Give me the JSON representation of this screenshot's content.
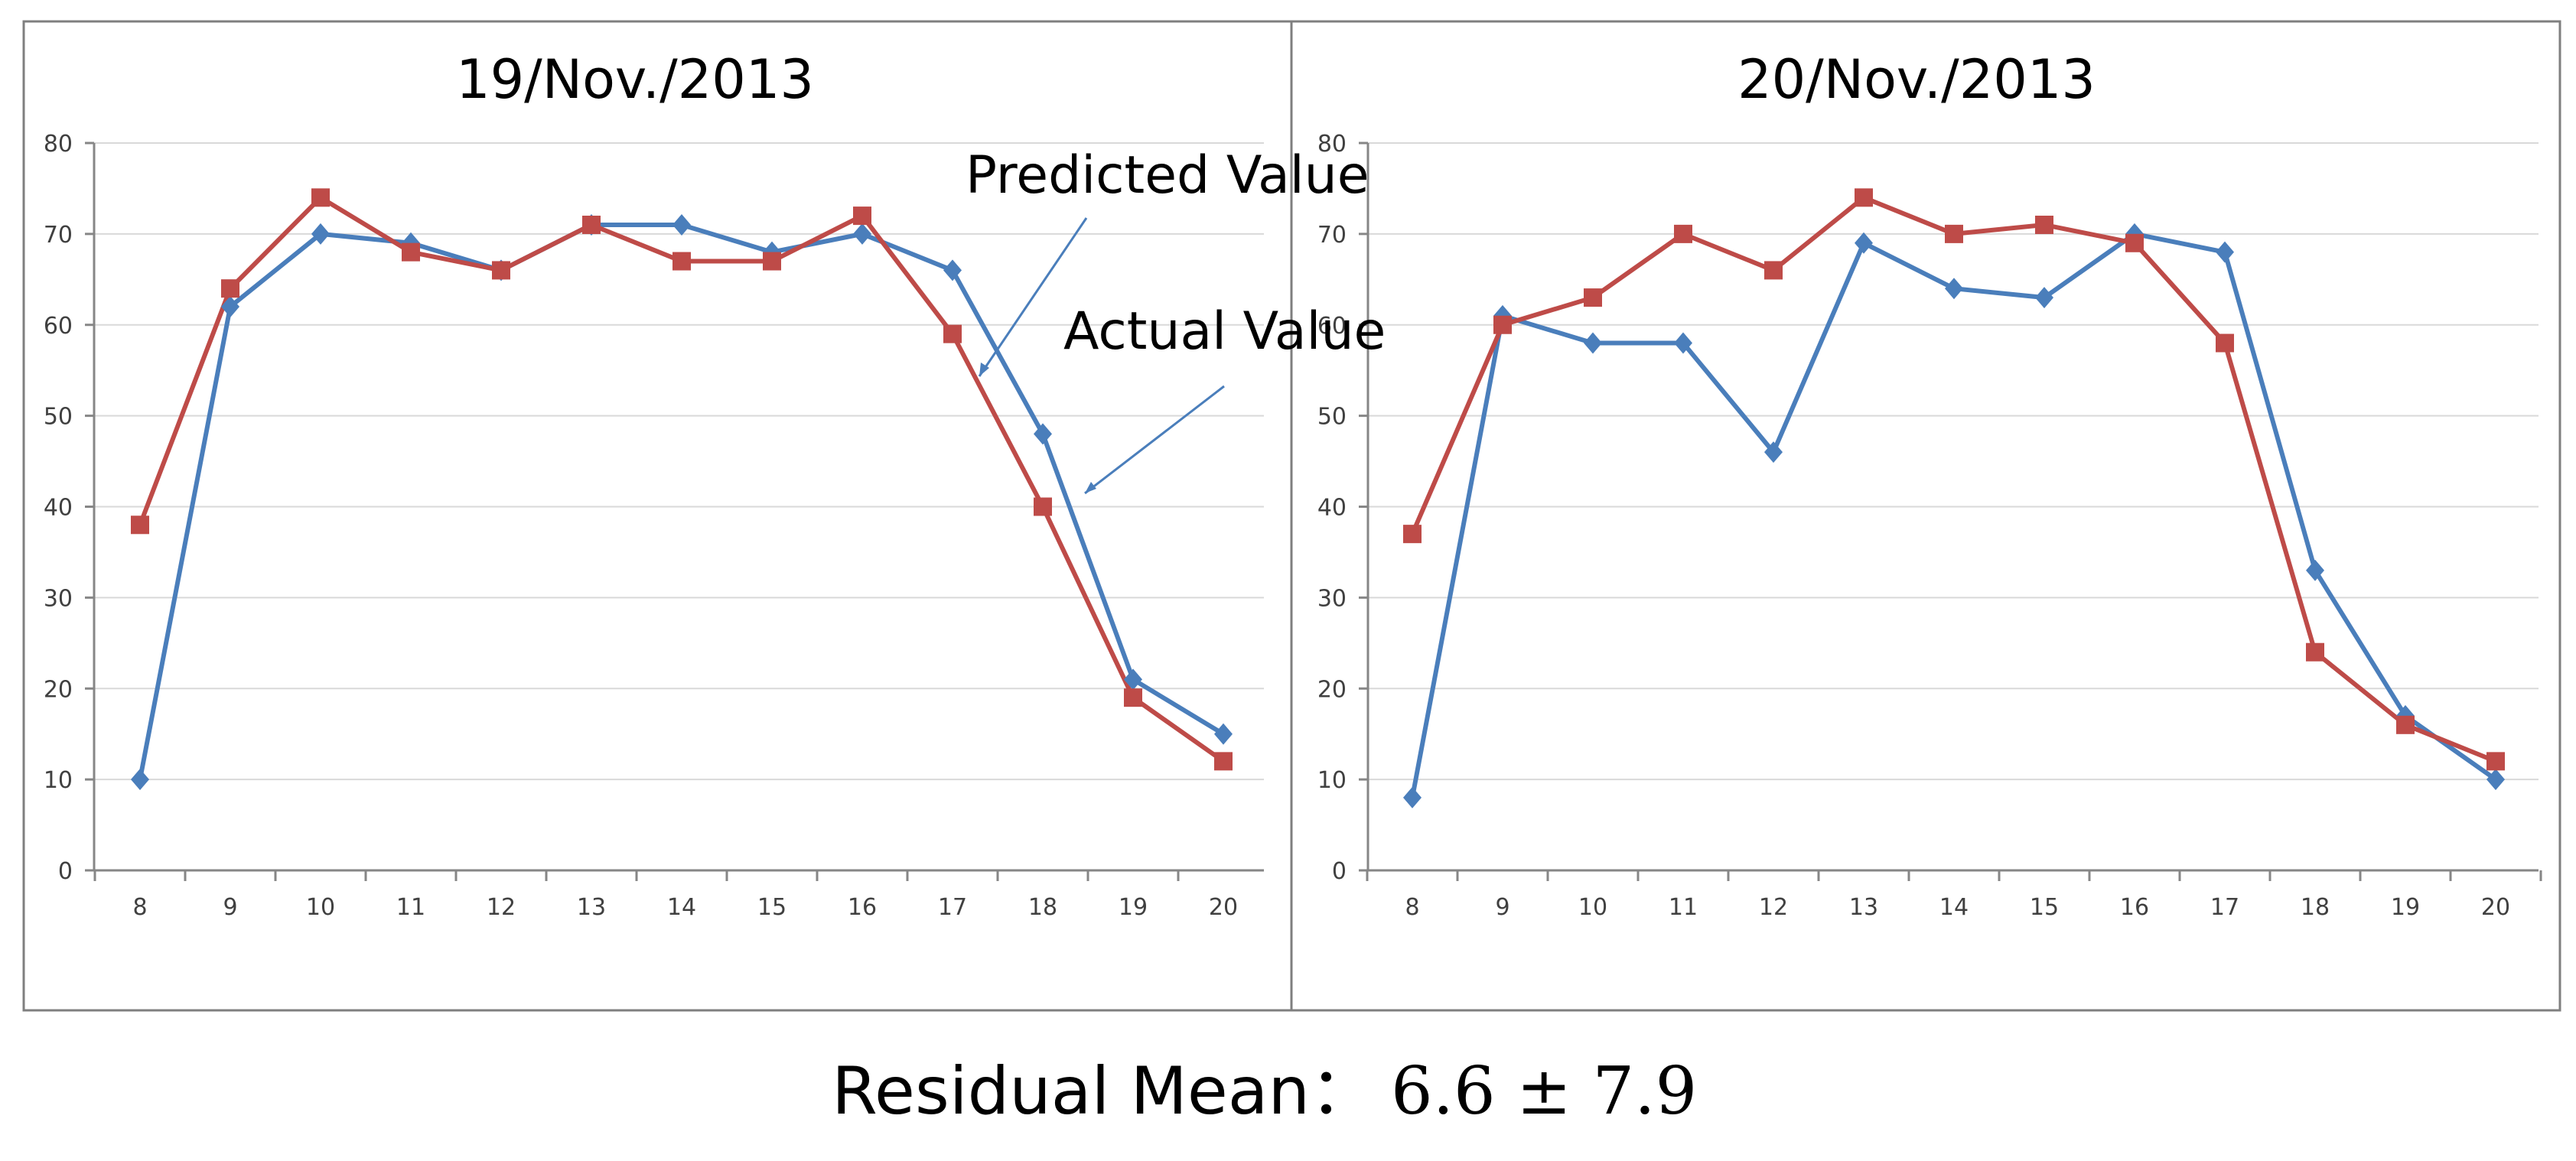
{
  "chart_data": [
    {
      "type": "line",
      "title": "19/Nov./2013",
      "xlabel": "",
      "ylabel": "",
      "categories": [
        "8",
        "9",
        "10",
        "11",
        "12",
        "13",
        "14",
        "15",
        "16",
        "17",
        "18",
        "19",
        "20"
      ],
      "ylim": [
        0,
        80
      ],
      "yticks": [
        0,
        10,
        20,
        30,
        40,
        50,
        60,
        70,
        80
      ],
      "grid": true,
      "series": [
        {
          "name": "Actual Value",
          "color": "#4a7ebb",
          "marker": "diamond",
          "values": [
            10,
            62,
            70,
            69,
            66,
            71,
            71,
            68,
            70,
            66,
            48,
            21,
            15
          ]
        },
        {
          "name": "Predicted Value",
          "color": "#be4b48",
          "marker": "square",
          "values": [
            38,
            64,
            74,
            68,
            66,
            71,
            67,
            67,
            72,
            59,
            40,
            19,
            12
          ]
        }
      ],
      "annotations": [
        {
          "text": "Predicted Value",
          "points_to": "Predicted Value"
        },
        {
          "text": "Actual Value",
          "points_to": "Actual Value"
        }
      ]
    },
    {
      "type": "line",
      "title": "20/Nov./2013",
      "xlabel": "",
      "ylabel": "",
      "categories": [
        "8",
        "9",
        "10",
        "11",
        "12",
        "13",
        "14",
        "15",
        "16",
        "17",
        "18",
        "19",
        "20"
      ],
      "ylim": [
        0,
        80
      ],
      "yticks": [
        0,
        10,
        20,
        30,
        40,
        50,
        60,
        70,
        80
      ],
      "grid": true,
      "series": [
        {
          "name": "Actual Value",
          "color": "#4a7ebb",
          "marker": "diamond",
          "values": [
            8,
            61,
            58,
            58,
            46,
            69,
            64,
            63,
            70,
            68,
            33,
            17,
            10
          ]
        },
        {
          "name": "Predicted Value",
          "color": "#be4b48",
          "marker": "square",
          "values": [
            37,
            60,
            63,
            70,
            66,
            74,
            70,
            71,
            69,
            58,
            24,
            16,
            12
          ]
        }
      ]
    }
  ],
  "footer": {
    "label": "Residual Mean：",
    "value": "6.6 ± 7.9"
  }
}
